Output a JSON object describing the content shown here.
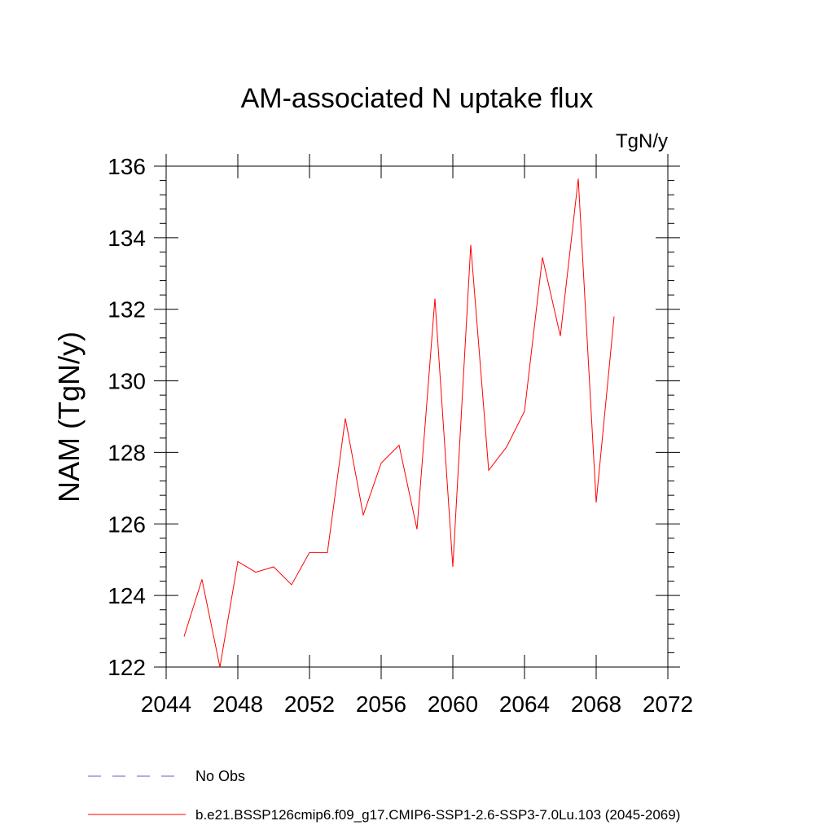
{
  "chart_data": {
    "type": "line",
    "title": "AM-associated N uptake flux",
    "units": "TgN/y",
    "xlabel": "",
    "ylabel": "NAM  (TgN/y)",
    "xlim": [
      2044,
      2072
    ],
    "ylim": [
      122,
      136
    ],
    "x_ticks": [
      2044,
      2048,
      2052,
      2056,
      2060,
      2064,
      2068,
      2072
    ],
    "y_ticks": [
      122,
      124,
      126,
      128,
      130,
      132,
      134,
      136
    ],
    "x_tick_labels": [
      "2044",
      "2048",
      "2052",
      "2056",
      "2060",
      "2064",
      "2068",
      "2072"
    ],
    "y_tick_labels": [
      "122",
      "124",
      "126",
      "128",
      "130",
      "132",
      "134",
      "136"
    ],
    "x": [
      2045,
      2046,
      2047,
      2048,
      2049,
      2050,
      2051,
      2052,
      2053,
      2054,
      2055,
      2056,
      2057,
      2058,
      2059,
      2060,
      2061,
      2062,
      2063,
      2064,
      2065,
      2066,
      2067,
      2068,
      2069
    ],
    "series": [
      {
        "name": "b.e21.BSSP126cmip6.f09_g17.CMIP6-SSP1-2.6-SSP3-7.0Lu.103 (2045-2069)",
        "color": "#ff0000",
        "values": [
          122.85,
          124.45,
          122.0,
          124.95,
          124.65,
          124.8,
          124.3,
          125.2,
          125.2,
          128.95,
          126.25,
          127.7,
          128.2,
          125.85,
          132.3,
          124.8,
          133.8,
          127.5,
          128.15,
          129.15,
          133.45,
          131.25,
          135.65,
          126.6,
          131.8
        ]
      }
    ],
    "legend": {
      "position": "bottom",
      "entries": [
        {
          "label": "No Obs",
          "color": "#6a5acd",
          "style": "dashed"
        },
        {
          "label": "b.e21.BSSP126cmip6.f09_g17.CMIP6-SSP1-2.6-SSP3-7.0Lu.103 (2045-2069)",
          "color": "#ff0000",
          "style": "solid"
        }
      ]
    },
    "grid": false
  }
}
